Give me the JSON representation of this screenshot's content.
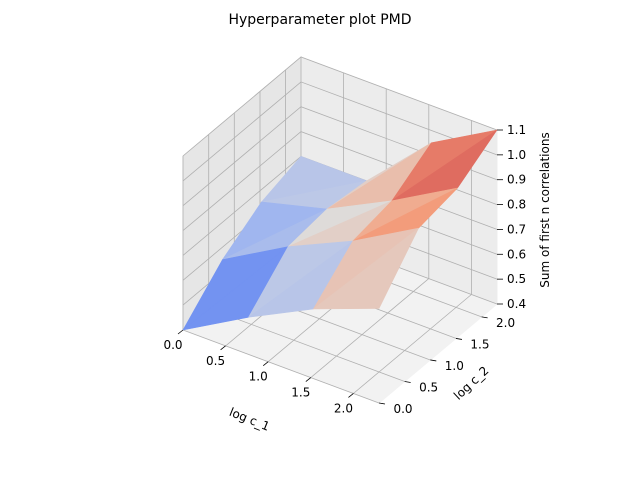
{
  "chart_data": {
    "type": "surface",
    "title": "Hyperparameter plot PMD",
    "xlabel": "log c_1",
    "ylabel": "log c_2",
    "zlabel": "Sum of first n correlations",
    "xticks": [
      "0.0",
      "0.5",
      "1.0",
      "1.5",
      "2.0"
    ],
    "yticks": [
      "0.0",
      "0.5",
      "1.0",
      "1.5",
      "2.0"
    ],
    "zticks": [
      "0.4",
      "0.5",
      "0.6",
      "0.7",
      "0.8",
      "0.9",
      "1.0",
      "1.1"
    ],
    "xlim": [
      0,
      2.3
    ],
    "ylim": [
      0,
      2.3
    ],
    "zlim": [
      0.4,
      1.1
    ],
    "grid": true,
    "colormap": "coolwarm",
    "x": [
      0,
      0.77,
      1.53,
      2.3
    ],
    "y": [
      0,
      0.77,
      1.53,
      2.3
    ],
    "z": [
      [
        0.4,
        0.55,
        0.68,
        0.78
      ],
      [
        0.55,
        0.7,
        0.82,
        0.97
      ],
      [
        0.65,
        0.72,
        0.85,
        1.0
      ],
      [
        0.7,
        0.7,
        0.95,
        1.1
      ]
    ]
  }
}
